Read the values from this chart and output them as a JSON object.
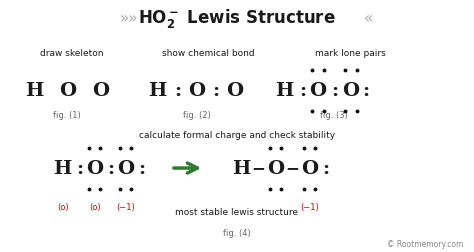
{
  "bg_color": "#ffffff",
  "text_color": "#1a1a1a",
  "red_color": "#cc0000",
  "green_color": "#2d7d2d",
  "gray_color": "#aaaaaa",
  "fig_label_color": "#666666",
  "dot_color": "#111111",
  "watermark": "© Rootmemory.com",
  "title_left_guild": "»»",
  "title_right_guild": "«",
  "title_main": "HO",
  "title_sub2": "2",
  "title_supneg": "⁻",
  "title_rest": " Lewis Structure",
  "label_draw": "draw skeleton",
  "label_bond": "show chemical bond",
  "label_lone": "mark lone pairs",
  "label_calc": "calculate formal charge and check stability",
  "label_stable": "most stable lewis structure",
  "cap1": "fig. (1)",
  "cap2": "fig. (2)",
  "cap3": "fig. (3)",
  "cap4": "fig. (4)",
  "charge_0": "(o)",
  "charge_neg1": "(−1)"
}
